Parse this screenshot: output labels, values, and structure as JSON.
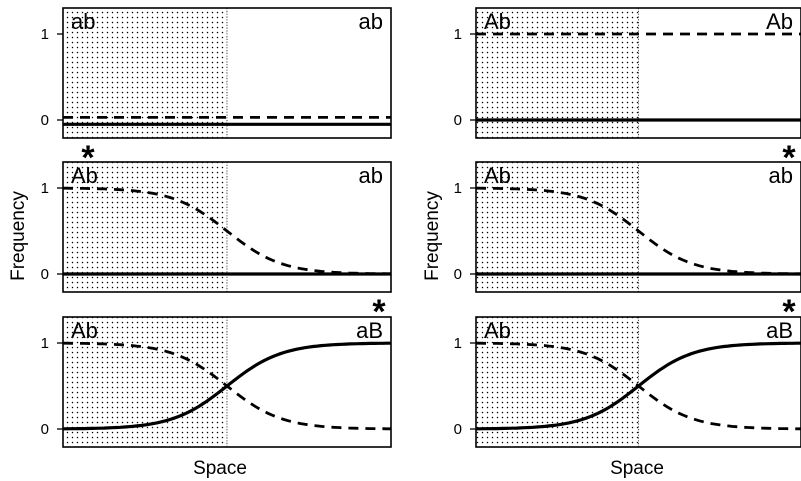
{
  "figure": {
    "ylabel": "Frequency",
    "xlabel": "Space"
  },
  "chart_data": [
    {
      "panel": "top-left",
      "type": "line",
      "left_label": "ab",
      "right_label": "ab",
      "ylim": [
        -0.15,
        1.3
      ],
      "yticks": [
        "0",
        "1"
      ],
      "shaded_region": "left",
      "star": "bottom-left",
      "series": [
        {
          "style": "dashed",
          "kind": "constant",
          "value": 0.03
        },
        {
          "style": "solid",
          "kind": "constant",
          "value": -0.05
        }
      ]
    },
    {
      "panel": "top-right",
      "type": "line",
      "left_label": "Ab",
      "right_label": "Ab",
      "ylim": [
        -0.15,
        1.3
      ],
      "yticks": [
        "0",
        "1"
      ],
      "shaded_region": "left",
      "star": "bottom-right",
      "series": [
        {
          "style": "dashed",
          "kind": "constant",
          "value": 1.0
        },
        {
          "style": "solid",
          "kind": "constant",
          "value": 0.0
        }
      ]
    },
    {
      "panel": "middle-left",
      "type": "line",
      "left_label": "Ab",
      "right_label": "ab",
      "ylim": [
        -0.15,
        1.3
      ],
      "yticks": [
        "0",
        "1"
      ],
      "shaded_region": "left",
      "star": "bottom-right",
      "series": [
        {
          "style": "dashed",
          "kind": "sigmoid-down",
          "value": 0.0
        },
        {
          "style": "solid",
          "kind": "constant",
          "value": 0.0
        }
      ]
    },
    {
      "panel": "middle-right",
      "type": "line",
      "left_label": "Ab",
      "right_label": "ab",
      "ylim": [
        -0.15,
        1.3
      ],
      "yticks": [
        "0",
        "1"
      ],
      "shaded_region": "left",
      "star": "bottom-right",
      "series": [
        {
          "style": "dashed",
          "kind": "sigmoid-down",
          "value": 0.0
        },
        {
          "style": "solid",
          "kind": "constant",
          "value": 0.0
        }
      ]
    },
    {
      "panel": "bottom-left",
      "type": "line",
      "left_label": "Ab",
      "right_label": "aB",
      "ylim": [
        -0.15,
        1.3
      ],
      "yticks": [
        "0",
        "1"
      ],
      "shaded_region": "left",
      "star": "",
      "series": [
        {
          "style": "dashed",
          "kind": "sigmoid-down",
          "value": 0.0
        },
        {
          "style": "solid",
          "kind": "sigmoid-up",
          "value": 0.0
        }
      ]
    },
    {
      "panel": "bottom-right",
      "type": "line",
      "left_label": "Ab",
      "right_label": "aB",
      "ylim": [
        -0.15,
        1.3
      ],
      "yticks": [
        "0",
        "1"
      ],
      "shaded_region": "left",
      "star": "",
      "series": [
        {
          "style": "dashed",
          "kind": "sigmoid-down",
          "value": 0.0
        },
        {
          "style": "solid",
          "kind": "sigmoid-up",
          "value": 0.0
        }
      ]
    }
  ]
}
